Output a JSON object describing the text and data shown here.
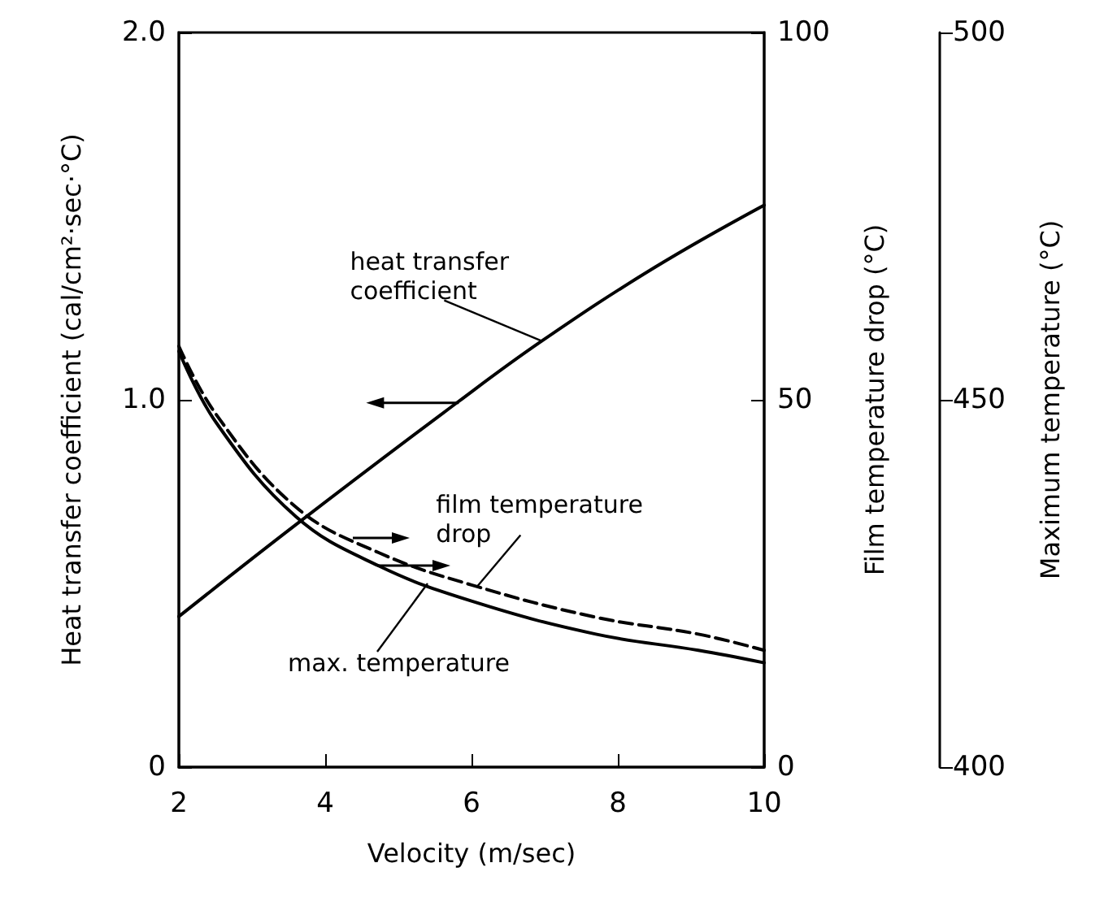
{
  "chart_data": {
    "type": "line",
    "xlabel": "Velocity (m/sec)",
    "ylabel": "Heat transfer coefficient (cal/cm²·sec·°C)",
    "y2label": "Film temperature drop (°C)",
    "y3label": "Maximum temperature (°C)",
    "xlim": [
      2,
      10
    ],
    "xticks": [
      2,
      4,
      6,
      8,
      10
    ],
    "ylim": [
      0,
      2
    ],
    "yticks": [
      0,
      {
        "value": 1,
        "label": "1.0"
      },
      {
        "value": 2,
        "label": "2.0"
      }
    ],
    "y2lim": [
      0,
      100
    ],
    "y2ticks": [
      0,
      50,
      100
    ],
    "y3lim": [
      400,
      500
    ],
    "y3ticks": [
      400,
      450,
      500
    ],
    "grid": false,
    "marker": "none",
    "series": [
      {
        "color": "#000000",
        "line_style": "solid",
        "x": [
          2,
          3.6,
          5.82,
          6.96,
          8.5,
          10
        ],
        "values": [
          0.41,
          0.66,
          0.995,
          1.16,
          1.36,
          1.53
        ]
      },
      {
        "color": "#000000",
        "line_style": "dashed",
        "axis": "y2",
        "x": [
          2,
          2.51,
          3.6,
          4.73,
          6,
          7.7,
          9.1,
          10
        ],
        "values": [
          57.3,
          48.0,
          35.4,
          29.2,
          24.8,
          20.4,
          18.1,
          15.9
        ]
      },
      {
        "color": "#000000",
        "line_style": "solid",
        "axis": "y3",
        "x": [
          2,
          2.51,
          3.6,
          4.73,
          6,
          7.7,
          9.1,
          10
        ],
        "values": [
          456.6,
          446.9,
          434.1,
          427.4,
          422.6,
          418.1,
          415.9,
          414.2
        ]
      }
    ],
    "annotations": [
      {
        "text": "heat transfer coefficient",
        "x": 6.96,
        "y": 1.16
      },
      {
        "text": "film temperature drop",
        "x": 6.07,
        "y": 0.49
      },
      {
        "text": "max. temperature",
        "x": 5.4,
        "y": 0.5
      }
    ]
  }
}
